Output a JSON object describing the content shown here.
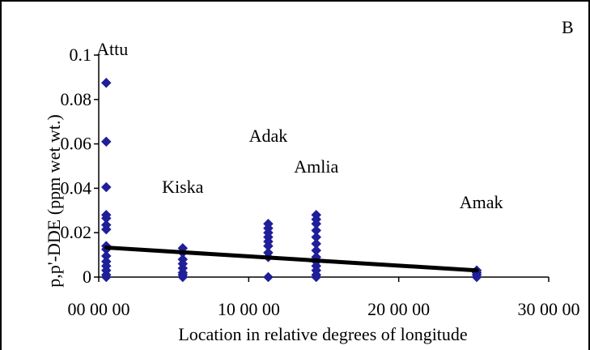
{
  "chart_data": {
    "type": "scatter",
    "panel_label": "B",
    "xlabel": "Location in relative degrees of longitude",
    "ylabel": "p,p'-DDE (ppm wet wt.)",
    "xlim": [
      0,
      30
    ],
    "ylim": [
      0,
      0.1
    ],
    "x_ticks": [
      0,
      10,
      20,
      30
    ],
    "x_tick_labels": [
      "00 00 00",
      "10 00 00",
      "20 00 00",
      "30 00 00"
    ],
    "y_ticks": [
      0,
      0.02,
      0.04,
      0.06,
      0.08,
      0.1
    ],
    "y_tick_labels": [
      "0",
      "0.02",
      "0.04",
      "0.06",
      "0.08",
      "0.1"
    ],
    "marker_color": "#1f1f99",
    "trendline_color": "#000000",
    "site_labels": [
      {
        "text": "Attu",
        "x": 0.9,
        "y": 0.1
      },
      {
        "text": "Kiska",
        "x": 5.6,
        "y": 0.038
      },
      {
        "text": "Adak",
        "x": 11.3,
        "y": 0.061
      },
      {
        "text": "Amlia",
        "x": 14.5,
        "y": 0.047
      },
      {
        "text": "Amak",
        "x": 25.5,
        "y": 0.031
      }
    ],
    "series": [
      {
        "points": [
          [
            0.5,
            0.0875
          ],
          [
            0.5,
            0.061
          ],
          [
            0.5,
            0.0405
          ],
          [
            0.5,
            0.028
          ],
          [
            0.5,
            0.0265
          ],
          [
            0.5,
            0.0235
          ],
          [
            0.5,
            0.0215
          ],
          [
            0.5,
            0.014
          ],
          [
            0.5,
            0.0125
          ],
          [
            0.5,
            0.0095
          ],
          [
            0.5,
            0.007
          ],
          [
            0.5,
            0.005
          ],
          [
            0.5,
            0.003
          ],
          [
            0.5,
            0.001
          ],
          [
            0.5,
            0.0
          ],
          [
            5.6,
            0.013
          ],
          [
            5.6,
            0.011
          ],
          [
            5.6,
            0.008
          ],
          [
            5.6,
            0.006
          ],
          [
            5.6,
            0.004
          ],
          [
            5.6,
            0.002
          ],
          [
            5.6,
            0.001
          ],
          [
            5.6,
            0.0
          ],
          [
            11.3,
            0.024
          ],
          [
            11.3,
            0.022
          ],
          [
            11.3,
            0.02
          ],
          [
            11.3,
            0.018
          ],
          [
            11.3,
            0.016
          ],
          [
            11.3,
            0.014
          ],
          [
            11.3,
            0.011
          ],
          [
            11.3,
            0.009
          ],
          [
            11.3,
            0.0
          ],
          [
            14.5,
            0.028
          ],
          [
            14.5,
            0.026
          ],
          [
            14.5,
            0.024
          ],
          [
            14.5,
            0.021
          ],
          [
            14.5,
            0.018
          ],
          [
            14.5,
            0.015
          ],
          [
            14.5,
            0.012
          ],
          [
            14.5,
            0.009
          ],
          [
            14.5,
            0.007
          ],
          [
            14.5,
            0.005
          ],
          [
            14.5,
            0.003
          ],
          [
            14.5,
            0.001
          ],
          [
            14.5,
            0.0
          ],
          [
            25.2,
            0.003
          ],
          [
            25.2,
            0.002
          ],
          [
            25.2,
            0.001
          ],
          [
            25.2,
            0.0
          ]
        ]
      }
    ],
    "trendline": {
      "x": [
        0.5,
        25.2
      ],
      "y": [
        0.0133,
        0.003
      ]
    }
  }
}
